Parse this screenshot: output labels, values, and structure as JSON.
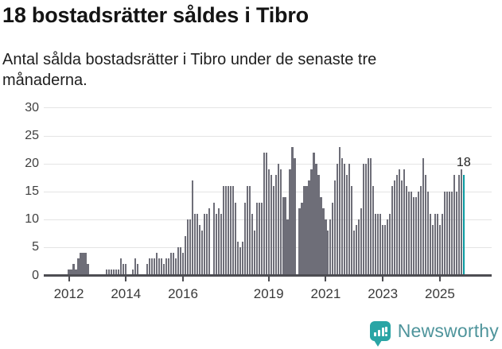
{
  "header": {
    "title": "18 bostadsrätter såldes i Tibro",
    "subtitle": "Antal sålda bostadsrätter i Tibro under de senaste tre månaderna."
  },
  "chart_data": {
    "type": "bar",
    "title": "18 bostadsrätter såldes i Tibro",
    "subtitle": "Antal sålda bostadsrätter i Tibro under de senaste tre månaderna.",
    "xlabel": "",
    "ylabel": "",
    "ylim": [
      0,
      30
    ],
    "grid": "horizontal",
    "legend": "none",
    "y_ticks": [
      0,
      5,
      10,
      15,
      20,
      25,
      30
    ],
    "x_ticks": [
      {
        "year": 2012,
        "label": "2012"
      },
      {
        "year": 2014,
        "label": "2014"
      },
      {
        "year": 2016,
        "label": "2016"
      },
      {
        "year": 2019,
        "label": "2019"
      },
      {
        "year": 2021,
        "label": "2021"
      },
      {
        "year": 2023,
        "label": "2023"
      },
      {
        "year": 2025,
        "label": "2025"
      }
    ],
    "start_month": "2011-03",
    "end_month": "2025-11",
    "frequency": "monthly_rolling_3_month_sum",
    "values": [
      0,
      0,
      0,
      0,
      0,
      0,
      0,
      0,
      0,
      0,
      1,
      1,
      2,
      1,
      3,
      4,
      4,
      4,
      2,
      0,
      0,
      0,
      0,
      0,
      0,
      0,
      1,
      1,
      1,
      1,
      1,
      1,
      3,
      2,
      2,
      0,
      0,
      1,
      3,
      2,
      0,
      0,
      0,
      2,
      3,
      3,
      3,
      4,
      3,
      3,
      2,
      3,
      3,
      4,
      4,
      3,
      5,
      5,
      4,
      7,
      10,
      10,
      17,
      11,
      11,
      9,
      8,
      11,
      11,
      12,
      0,
      13,
      11,
      12,
      11,
      16,
      16,
      16,
      16,
      16,
      13,
      6,
      5,
      6,
      13,
      16,
      16,
      11,
      8,
      13,
      13,
      13,
      22,
      22,
      19,
      18,
      16,
      18,
      20,
      19,
      14,
      14,
      10,
      19,
      23,
      21,
      0,
      12,
      13,
      16,
      16,
      17,
      19,
      22,
      20,
      18,
      14,
      12,
      10,
      8,
      10,
      13,
      17,
      20,
      23,
      21,
      20,
      18,
      20,
      16,
      8,
      9,
      10,
      12,
      20,
      20,
      21,
      21,
      16,
      11,
      11,
      11,
      9,
      9,
      10,
      11,
      16,
      17,
      18,
      19,
      17,
      19,
      16,
      15,
      15,
      14,
      14,
      15,
      16,
      21,
      18,
      15,
      11,
      9,
      11,
      11,
      9,
      11,
      15,
      15,
      15,
      15,
      18,
      15,
      18,
      19,
      18
    ],
    "highlight_last_bar": true,
    "annotation": {
      "text": "18",
      "target": "last-bar"
    },
    "colors": {
      "bar": "#6e6e78",
      "highlight": "#0b9aa0",
      "gridline": "#e4e4e4",
      "axis": "#4d4d52",
      "tick_label": "#3a3a3a"
    }
  },
  "footer": {
    "brand": "Newsworthy",
    "logo_icon": "bar-chart-speech-bubble-icon"
  }
}
